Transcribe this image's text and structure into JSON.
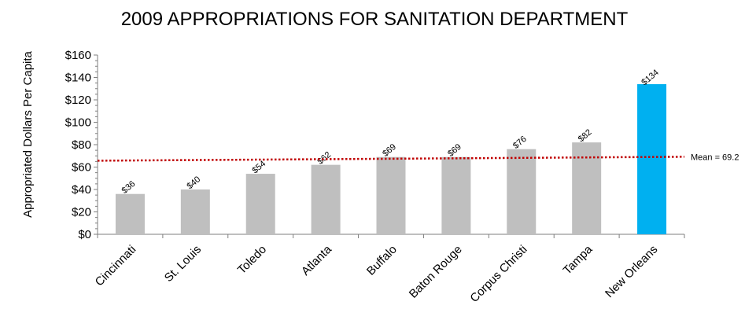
{
  "chart_data": {
    "type": "bar",
    "title": "2009 APPROPRIATIONS FOR SANITATION DEPARTMENT",
    "ylabel": "Appropriated Dollars Per Capita",
    "xlabel": "",
    "categories": [
      "Cincinnati",
      "St. Louis",
      "Toledo",
      "Atlanta",
      "Buffalo",
      "Baton Rouge",
      "Corpus Christi",
      "Tampa",
      "New Orleans"
    ],
    "values": [
      36,
      40,
      54,
      62,
      69,
      69,
      76,
      82,
      134
    ],
    "data_labels": [
      "$36",
      "$40",
      "$54",
      "$62",
      "$69",
      "$69",
      "$76",
      "$82",
      "$134"
    ],
    "ylim": [
      0,
      160
    ],
    "yticks": [
      0,
      20,
      40,
      60,
      80,
      100,
      120,
      140,
      160
    ],
    "ytick_labels": [
      "$0",
      "$20",
      "$40",
      "$60",
      "$80",
      "$100",
      "$120",
      "$140",
      "$160"
    ],
    "mean_value": 69.2,
    "mean_label": "Mean = 69.2",
    "colors": {
      "bar": "#bfbfbf",
      "highlight": "#00b0f0",
      "mean_line": "#c00000",
      "axis": "#7f7f7f"
    },
    "highlight_index": 8,
    "grid": false,
    "legend": "none"
  }
}
